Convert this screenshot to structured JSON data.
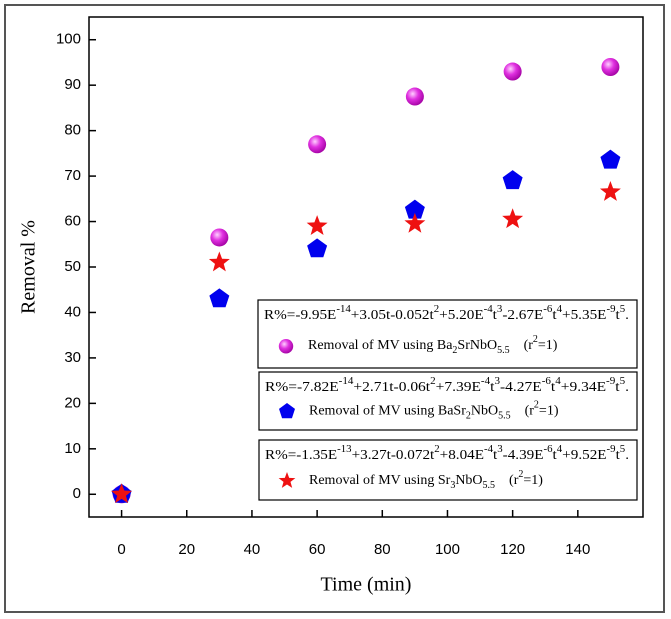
{
  "chart_data": {
    "type": "scatter",
    "x_label": "Time (min)",
    "y_label": "Removal %",
    "xlim": [
      -10,
      160
    ],
    "xticks": [
      0,
      20,
      40,
      60,
      80,
      100,
      120,
      140
    ],
    "ylim": [
      -5,
      105
    ],
    "yticks": [
      0,
      10,
      20,
      30,
      40,
      50,
      60,
      70,
      80,
      90,
      100
    ],
    "x": [
      0,
      30,
      60,
      90,
      120,
      150
    ],
    "series": [
      {
        "name": "Removal of MV using Ba2SrNbO5.5",
        "marker": "sphere",
        "color": "#e020e0",
        "equation": "R%=-9.95E-14+3.05t-0.052t2+5.20E-4t3-2.67E-6t4+5.35E-9t5.",
        "r_squared": "(r2=1)",
        "values": [
          0,
          56.5,
          77,
          87.5,
          93,
          94
        ]
      },
      {
        "name": "Removal of MV using BaSr2NbO5.5",
        "marker": "pentagon",
        "color": "#0000ee",
        "equation": "R%=-7.82E-14+2.71t-0.06t2+7.39E-4t3-4.27E-6t4+9.34E-9t5.",
        "r_squared": "(r2=1)",
        "values": [
          0,
          43,
          54,
          62.5,
          69,
          73.5
        ]
      },
      {
        "name": "Removal of MV using Sr3NbO5.5",
        "marker": "star",
        "color": "#ee1111",
        "equation": "R%=-1.35E-13+3.27t-0.072t2+8.04E-4t3-4.39E-6t4+9.52E-9t5.",
        "r_squared": "(r2=1)",
        "values": [
          0,
          51,
          59,
          59.5,
          60.5,
          66.5
        ]
      }
    ]
  }
}
